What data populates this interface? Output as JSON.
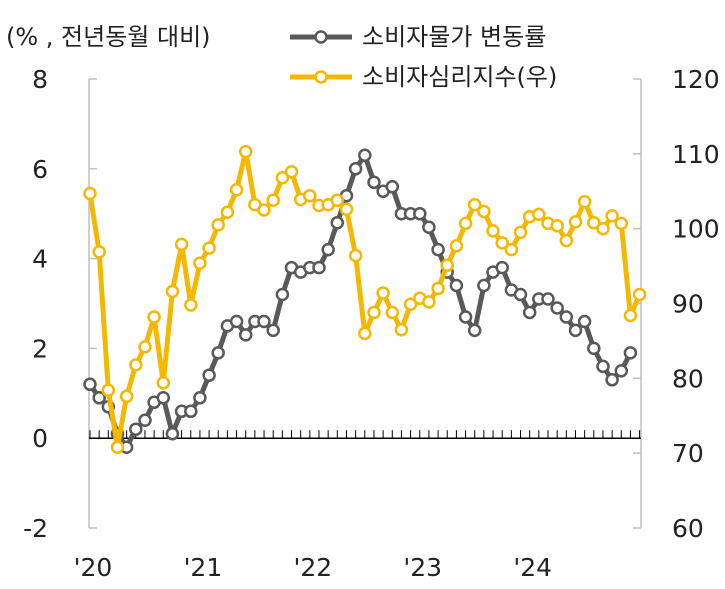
{
  "chart_data": {
    "type": "line",
    "y_unit_label": "(% , 전년동월 대비)",
    "x_tick_labels": [
      "'20",
      "'21",
      "'22",
      "'23",
      "'24"
    ],
    "y_left": {
      "range": [
        -2,
        8
      ],
      "ticks": [
        "8",
        "6",
        "4",
        "2",
        "0",
        "-2"
      ],
      "tick_values": [
        8,
        6,
        4,
        2,
        0,
        -2
      ]
    },
    "y_right": {
      "range": [
        60,
        120
      ],
      "ticks": [
        "120",
        "110",
        "100",
        "90",
        "80",
        "70",
        "60"
      ],
      "tick_values": [
        120,
        110,
        100,
        90,
        80,
        70,
        60
      ]
    },
    "legend_placement": "top",
    "series": [
      {
        "name": "소비자물가 변동률",
        "axis": "left",
        "color": "#595959",
        "marker_fill": "#ffffff",
        "values": [
          1.2,
          0.9,
          0.7,
          0.1,
          -0.2,
          0.2,
          0.4,
          0.8,
          0.9,
          0.1,
          0.6,
          0.6,
          0.9,
          1.4,
          1.9,
          2.5,
          2.6,
          2.3,
          2.6,
          2.6,
          2.4,
          3.2,
          3.8,
          3.7,
          3.8,
          3.8,
          4.2,
          4.8,
          5.4,
          6.0,
          6.3,
          5.7,
          5.5,
          5.6,
          5.0,
          5.0,
          5.0,
          4.7,
          4.2,
          3.7,
          3.4,
          2.7,
          2.4,
          3.4,
          3.7,
          3.8,
          3.3,
          3.2,
          2.8,
          3.1,
          3.1,
          2.9,
          2.7,
          2.4,
          2.6,
          2.0,
          1.6,
          1.3,
          1.5,
          1.9
        ]
      },
      {
        "name": "소비자심리지수(우)",
        "axis": "right",
        "color": "#f5b800",
        "marker_fill": "#ffffff",
        "values": [
          104.7,
          96.9,
          78.4,
          70.8,
          77.6,
          81.8,
          84.2,
          88.2,
          79.4,
          91.6,
          97.9,
          89.8,
          95.4,
          97.4,
          100.5,
          102.2,
          105.2,
          110.3,
          103.2,
          102.5,
          103.8,
          106.8,
          107.6,
          103.9,
          104.4,
          103.1,
          103.2,
          103.8,
          102.6,
          96.4,
          86.0,
          88.8,
          91.4,
          88.8,
          86.5,
          89.9,
          90.7,
          90.2,
          92.0,
          95.1,
          97.7,
          100.7,
          103.2,
          102.3,
          99.7,
          98.1,
          97.2,
          99.5,
          101.6,
          101.9,
          100.7,
          100.4,
          98.4,
          100.9,
          103.6,
          100.8,
          100.0,
          101.7,
          100.7,
          88.4,
          91.2
        ]
      }
    ]
  }
}
